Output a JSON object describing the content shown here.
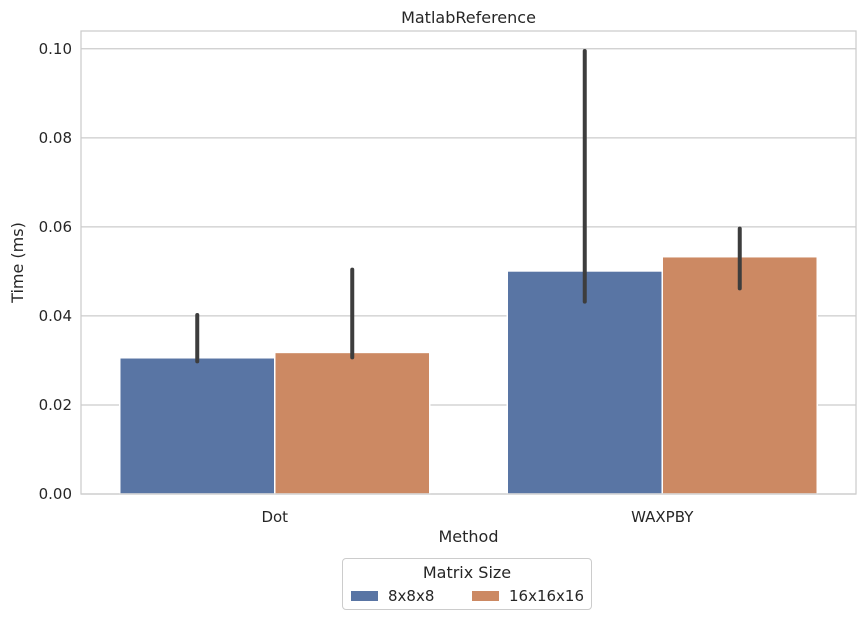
{
  "chart_data": {
    "type": "bar",
    "title": "MatlabReference",
    "xlabel": "Method",
    "ylabel": "Time (ms)",
    "categories": [
      "Dot",
      "WAXPBY"
    ],
    "ylim": [
      0,
      0.104
    ],
    "yticks": [
      "0.00",
      "0.02",
      "0.04",
      "0.06",
      "0.08",
      "0.10"
    ],
    "grid": true,
    "legend_title": "Matrix Size",
    "legend_position": "bottom-center",
    "series": [
      {
        "name": "8x8x8",
        "color": "#5975a4",
        "values": [
          0.0306,
          0.0501
        ],
        "error_low": [
          0.0298,
          0.0432
        ],
        "error_high": [
          0.0402,
          0.0995
        ]
      },
      {
        "name": "16x16x16",
        "color": "#cc8963",
        "values": [
          0.0318,
          0.0533
        ],
        "error_low": [
          0.0307,
          0.0462
        ],
        "error_high": [
          0.0504,
          0.0596
        ]
      }
    ]
  }
}
